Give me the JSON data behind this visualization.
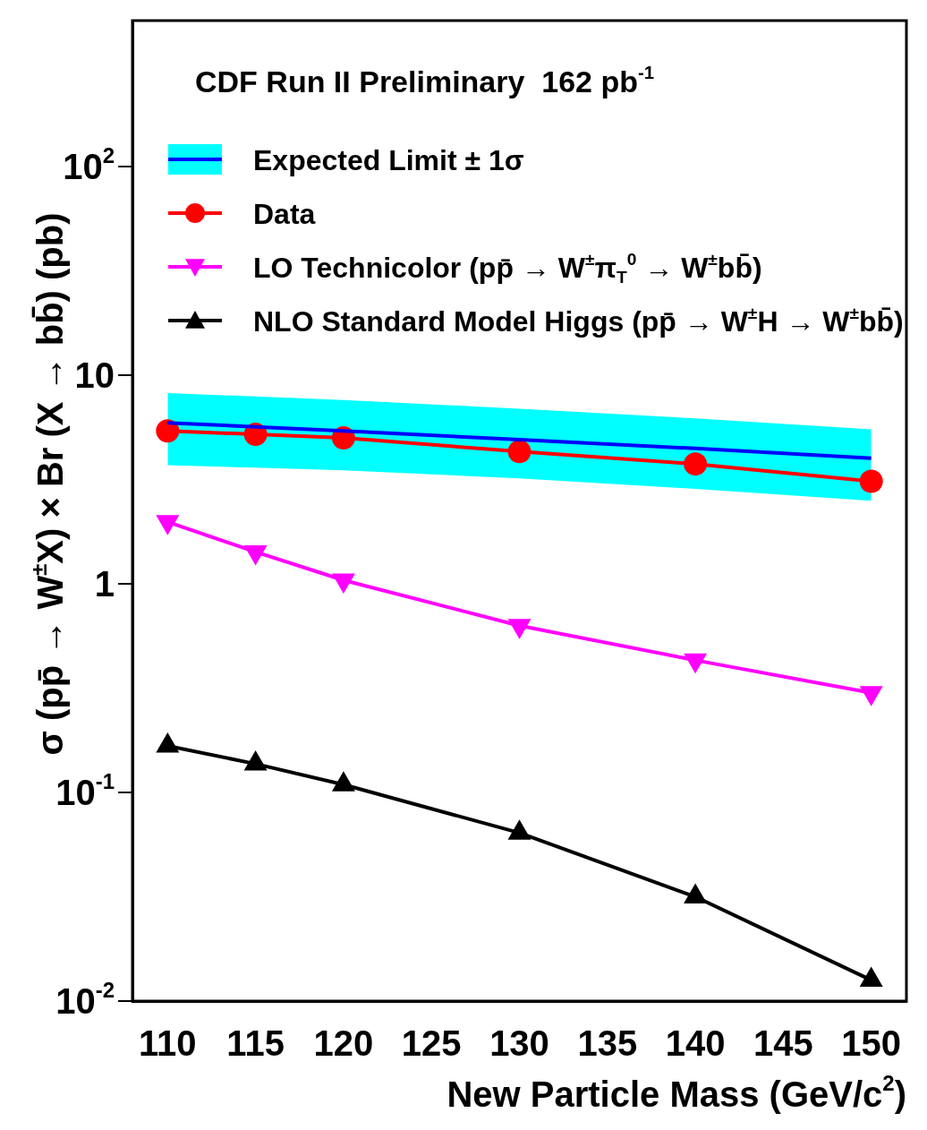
{
  "chart_data": {
    "type": "line",
    "annotations": [
      "CDF Run II Preliminary  162 pb$^{-1}$"
    ],
    "xlabel": "New Particle Mass (GeV/c$^{2}$)",
    "ylabel": "σ (pp̄ → W$^{±}$X) × Br (X → bb̄) (pb)",
    "x": [
      110,
      115,
      120,
      130,
      140,
      150
    ],
    "xlim": [
      108,
      152
    ],
    "xticks": [
      110,
      115,
      120,
      125,
      130,
      135,
      140,
      145,
      150
    ],
    "ylim": [
      0.01,
      500
    ],
    "yticks": [
      {
        "value": 0.01,
        "label": "10$^{-2}$"
      },
      {
        "value": 0.1,
        "label": "10$^{-1}$"
      },
      1,
      10,
      {
        "value": 100,
        "label": "10$^{2}$"
      }
    ],
    "log": "y",
    "grid": false,
    "legend": "top left",
    "series": [
      {
        "name": "Expected Limit ± 1σ",
        "color": "#0000ff",
        "marker": "none",
        "values": [
          5.9,
          5.65,
          5.4,
          4.9,
          4.45,
          4.0
        ],
        "lower": [
          3.7,
          3.6,
          3.5,
          3.2,
          2.85,
          2.5
        ],
        "upper": [
          8.2,
          7.9,
          7.6,
          6.9,
          6.2,
          5.5
        ]
      },
      {
        "name": "Data",
        "color": "#ff0000",
        "marker": "circle",
        "values": [
          5.4,
          5.2,
          5.0,
          4.3,
          3.75,
          3.1
        ]
      },
      {
        "name": "LO Technicolor (pp̄ → W$^{±}$π$_{T}$$^{0}$ → W$^{±}$bb̄)",
        "color": "#ff00ff",
        "marker": "triangle-down",
        "values": [
          1.98,
          1.42,
          1.04,
          0.63,
          0.43,
          0.3
        ]
      },
      {
        "name": "NLO Standard Model Higgs (pp̄ → W$^{±}$H → W$^{±}$bb̄)",
        "color": "#000000",
        "marker": "triangle",
        "values": [
          0.167,
          0.137,
          0.109,
          0.064,
          0.0316,
          0.0126
        ]
      }
    ]
  }
}
